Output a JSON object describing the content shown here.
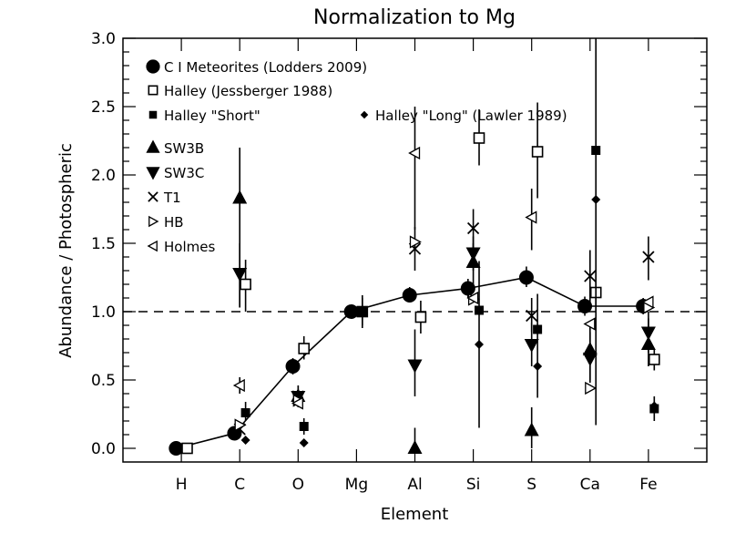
{
  "chart_data": {
    "type": "scatter",
    "title": "Normalization to Mg",
    "xlabel": "Element",
    "ylabel": "Abundance / Photospheric",
    "categories": [
      "H",
      "C",
      "O",
      "Mg",
      "Al",
      "Si",
      "S",
      "Ca",
      "Fe"
    ],
    "xlim": [
      0,
      10
    ],
    "ylim": [
      -0.1,
      3.0
    ],
    "yticks": [
      "0.0",
      "0.5",
      "1.0",
      "1.5",
      "2.0",
      "2.5",
      "3.0"
    ],
    "reference_line": {
      "y": 1.0,
      "style": "dashed"
    },
    "legend_placement": "top-left",
    "legend_extra": "Halley \"Long\" (Lawler 1989)",
    "series": [
      {
        "name": "C I Meteorites (Lodders 2009)",
        "marker": "filled-circle",
        "connected": true,
        "points": [
          {
            "x": "H",
            "y": 0.0
          },
          {
            "x": "C",
            "y": 0.11,
            "err": [
              0.08,
              0.14
            ]
          },
          {
            "x": "O",
            "y": 0.6,
            "err": [
              0.54,
              0.66
            ]
          },
          {
            "x": "Mg",
            "y": 1.0,
            "err": [
              0.95,
              1.05
            ]
          },
          {
            "x": "Al",
            "y": 1.12,
            "err": [
              1.07,
              1.18
            ]
          },
          {
            "x": "Si",
            "y": 1.17,
            "err": [
              1.1,
              1.24
            ]
          },
          {
            "x": "S",
            "y": 1.25,
            "err": [
              1.18,
              1.33
            ]
          },
          {
            "x": "Ca",
            "y": 1.04,
            "err": [
              0.97,
              1.11
            ]
          },
          {
            "x": "Fe",
            "y": 1.04,
            "err": [
              0.98,
              1.1
            ]
          }
        ]
      },
      {
        "name": "Halley (Jessberger 1988)",
        "marker": "open-square",
        "points": [
          {
            "x": "H",
            "y": 0.0
          },
          {
            "x": "C",
            "y": 1.2,
            "err": [
              1.0,
              1.38
            ]
          },
          {
            "x": "O",
            "y": 0.73,
            "err": [
              0.65,
              0.82
            ]
          },
          {
            "x": "Mg",
            "y": 1.0,
            "err": [
              0.9,
              1.1
            ]
          },
          {
            "x": "Al",
            "y": 0.96,
            "err": [
              0.84,
              1.08
            ]
          },
          {
            "x": "Si",
            "y": 2.27,
            "err": [
              2.07,
              2.48
            ]
          },
          {
            "x": "S",
            "y": 2.17,
            "err": [
              1.83,
              2.53
            ]
          },
          {
            "x": "Ca",
            "y": 1.14,
            "err": [
              1.0,
              1.3
            ]
          },
          {
            "x": "Fe",
            "y": 0.65,
            "err": [
              0.57,
              0.72
            ]
          }
        ]
      },
      {
        "name": "Halley \"Short\"",
        "marker": "filled-square",
        "points": [
          {
            "x": "C",
            "y": 0.26,
            "err": [
              0.2,
              0.34
            ]
          },
          {
            "x": "O",
            "y": 0.16,
            "err": [
              0.1,
              0.22
            ]
          },
          {
            "x": "Mg",
            "y": 1.0,
            "err": [
              0.88,
              1.12
            ]
          },
          {
            "x": "Si",
            "y": 1.01,
            "err": [
              0.15,
              1.37
            ]
          },
          {
            "x": "S",
            "y": 0.87,
            "err": [
              0.37,
              1.13
            ]
          },
          {
            "x": "Ca",
            "y": 2.18,
            "err": [
              0.17,
              3.0
            ]
          },
          {
            "x": "Fe",
            "y": 0.29,
            "err": [
              0.2,
              0.38
            ]
          }
        ]
      },
      {
        "name": "Halley \"Long\"",
        "marker": "filled-diamond",
        "points": [
          {
            "x": "C",
            "y": 0.06
          },
          {
            "x": "O",
            "y": 0.04
          },
          {
            "x": "Si",
            "y": 0.76
          },
          {
            "x": "S",
            "y": 0.6
          },
          {
            "x": "Ca",
            "y": 1.82
          },
          {
            "x": "Fe",
            "y": 0.31
          }
        ]
      },
      {
        "name": "SW3B",
        "marker": "triangle-up",
        "points": [
          {
            "x": "C",
            "y": 1.83,
            "err": [
              1.03,
              2.2
            ]
          },
          {
            "x": "O",
            "y": 0.38,
            "err": [
              0.3,
              0.46
            ]
          },
          {
            "x": "Al",
            "y": 0.0,
            "err": [
              0.0,
              0.15
            ]
          },
          {
            "x": "Si",
            "y": 1.36,
            "err": [
              1.2,
              1.5
            ]
          },
          {
            "x": "S",
            "y": 0.13,
            "err": [
              0.0,
              0.3
            ]
          },
          {
            "x": "Ca",
            "y": 0.72,
            "err": [
              0.5,
              0.9
            ]
          },
          {
            "x": "Fe",
            "y": 0.76,
            "err": [
              0.6,
              0.95
            ]
          }
        ]
      },
      {
        "name": "SW3C",
        "marker": "triangle-down",
        "points": [
          {
            "x": "C",
            "y": 1.28,
            "err": [
              1.03,
              1.5
            ]
          },
          {
            "x": "O",
            "y": 0.38,
            "err": [
              0.3,
              0.46
            ]
          },
          {
            "x": "Al",
            "y": 0.61,
            "err": [
              0.38,
              0.87
            ]
          },
          {
            "x": "Si",
            "y": 1.43,
            "err": [
              1.3,
              1.55
            ]
          },
          {
            "x": "S",
            "y": 0.76,
            "err": [
              0.6,
              0.92
            ]
          },
          {
            "x": "Ca",
            "y": 0.66,
            "err": [
              0.48,
              0.85
            ]
          },
          {
            "x": "Fe",
            "y": 0.85,
            "err": [
              0.7,
              1.0
            ]
          }
        ]
      },
      {
        "name": "T1",
        "marker": "x",
        "points": [
          {
            "x": "C",
            "y": 0.14
          },
          {
            "x": "O",
            "y": 0.38
          },
          {
            "x": "Al",
            "y": 1.46,
            "err": [
              1.3,
              1.62
            ]
          },
          {
            "x": "Si",
            "y": 1.61,
            "err": [
              1.45,
              1.75
            ]
          },
          {
            "x": "S",
            "y": 0.97,
            "err": [
              0.85,
              1.1
            ]
          },
          {
            "x": "Ca",
            "y": 1.26,
            "err": [
              1.05,
              1.45
            ]
          },
          {
            "x": "Fe",
            "y": 1.4,
            "err": [
              1.23,
              1.55
            ]
          }
        ]
      },
      {
        "name": "HB",
        "marker": "triangle-right",
        "points": [
          {
            "x": "C",
            "y": 0.17
          },
          {
            "x": "O",
            "y": 0.35
          },
          {
            "x": "Al",
            "y": 1.51
          },
          {
            "x": "Si",
            "y": 1.09
          },
          {
            "x": "Ca",
            "y": 0.44
          },
          {
            "x": "Fe",
            "y": 1.03
          }
        ]
      },
      {
        "name": "Holmes",
        "marker": "triangle-left",
        "points": [
          {
            "x": "C",
            "y": 0.46,
            "err": [
              0.4,
              0.52
            ]
          },
          {
            "x": "O",
            "y": 0.33
          },
          {
            "x": "Al",
            "y": 2.16,
            "err": [
              1.6,
              2.5
            ]
          },
          {
            "x": "Si",
            "y": 1.1
          },
          {
            "x": "S",
            "y": 1.69,
            "err": [
              1.45,
              1.9
            ]
          },
          {
            "x": "Ca",
            "y": 0.91
          },
          {
            "x": "Fe",
            "y": 1.07
          }
        ]
      }
    ]
  }
}
